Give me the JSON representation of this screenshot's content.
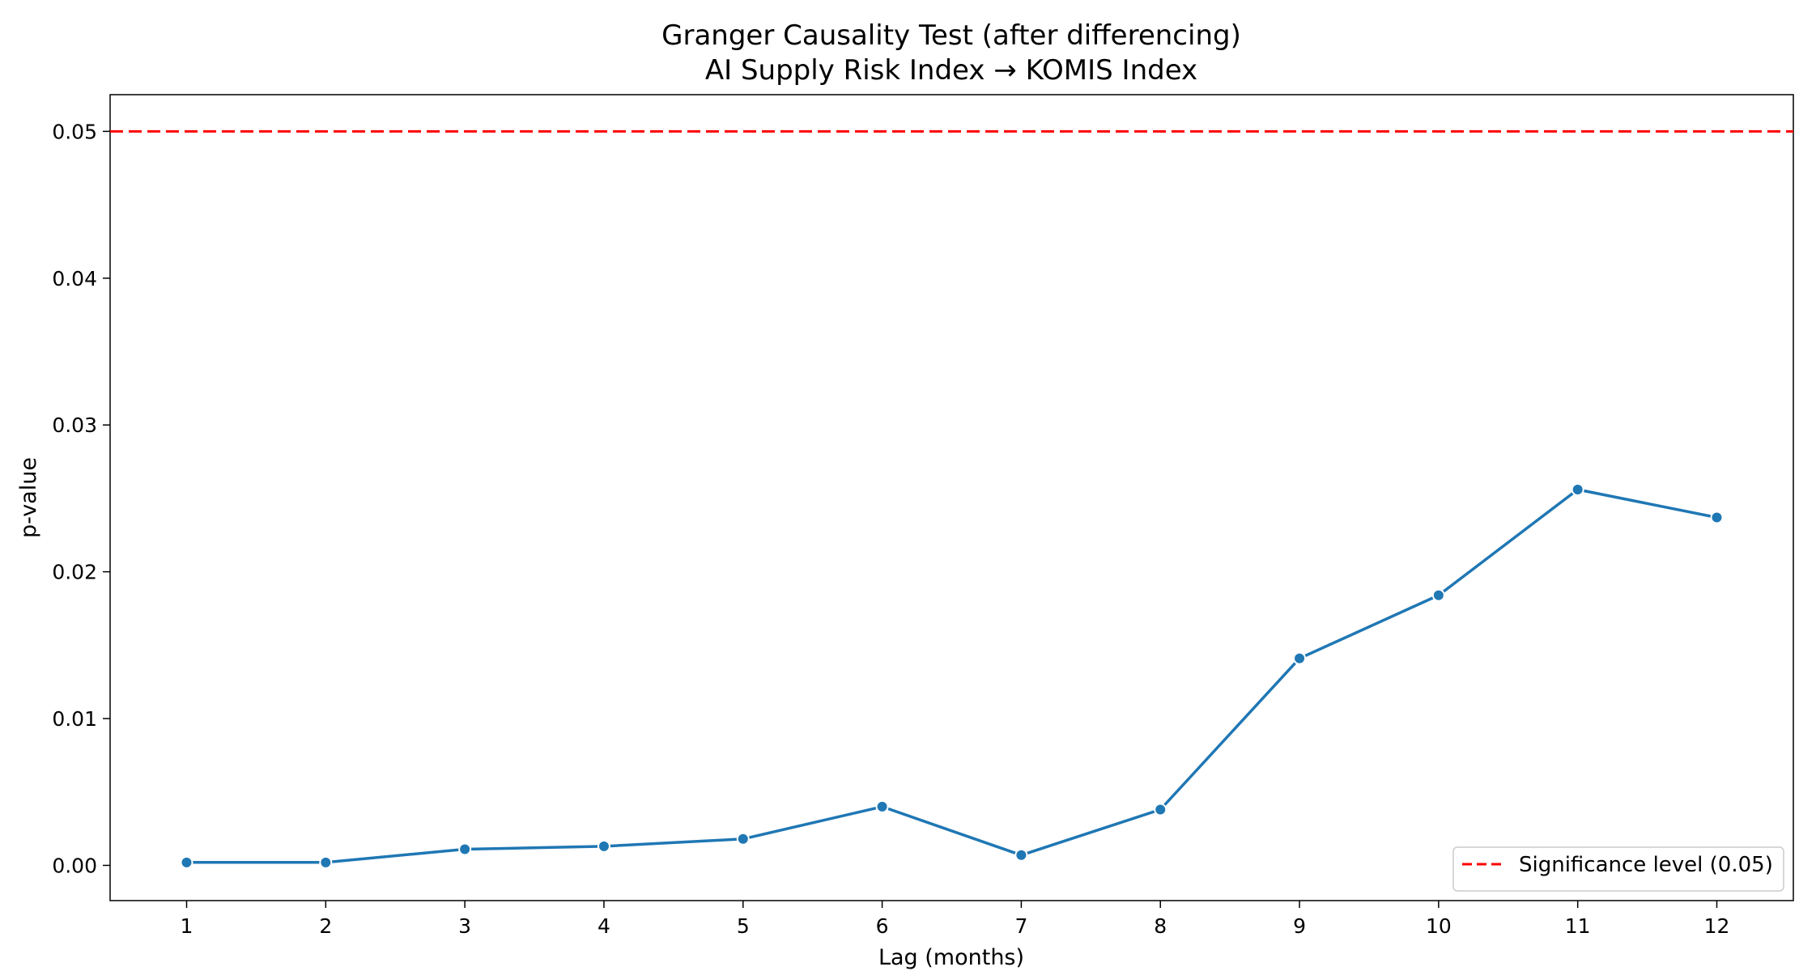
{
  "chart_data": {
    "type": "line",
    "title": "Granger Causality Test (after differencing)",
    "subtitle": "AI Supply Risk Index → KOMIS Index",
    "xlabel": "Lag (months)",
    "ylabel": "p-value",
    "x": [
      1,
      2,
      3,
      4,
      5,
      6,
      7,
      8,
      9,
      10,
      11,
      12
    ],
    "x_ticks": [
      "1",
      "2",
      "3",
      "4",
      "5",
      "6",
      "7",
      "8",
      "9",
      "10",
      "11",
      "12"
    ],
    "xlim": [
      0.45,
      12.55
    ],
    "ylim": [
      -0.0024,
      0.0525
    ],
    "y_ticks": [
      0.0,
      0.01,
      0.02,
      0.03,
      0.04,
      0.05
    ],
    "y_tick_labels": [
      "0.00",
      "0.01",
      "0.02",
      "0.03",
      "0.04",
      "0.05"
    ],
    "series": [
      {
        "values": [
          0.0002,
          0.0002,
          0.0011,
          0.0013,
          0.0018,
          0.004,
          0.0007,
          0.0038,
          0.0141,
          0.0184,
          0.0256,
          0.0237
        ],
        "color": "#1f77b4",
        "marker": "circle"
      }
    ],
    "reference_line": {
      "y": 0.05,
      "label": "Significance level (0.05)",
      "color": "#ff0000",
      "style": "dashed"
    },
    "legend": {
      "position": "bottom-right"
    },
    "grid": false
  }
}
